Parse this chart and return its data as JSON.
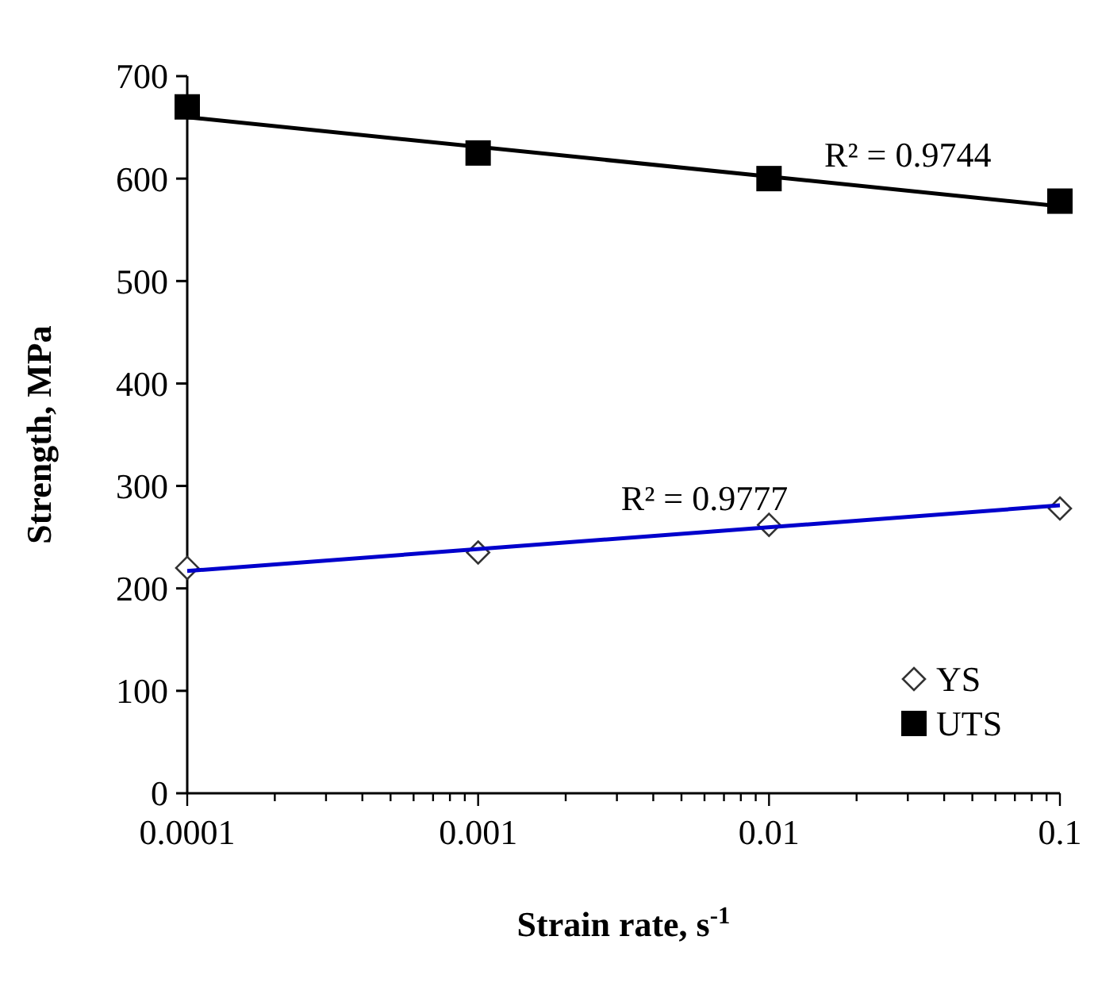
{
  "chart_data": {
    "type": "scatter",
    "xlabel": "Strain rate, s$^{-1}$",
    "ylabel": "Strength, MPa",
    "log": "x",
    "xlim": [
      0.0001,
      0.1
    ],
    "ylim": [
      0,
      700
    ],
    "xticks": [
      0.0001,
      {
        "value": 0.0002,
        "label": null
      },
      {
        "value": 0.0003,
        "label": null
      },
      {
        "value": 0.0004,
        "label": null
      },
      {
        "value": 0.0005,
        "label": null
      },
      {
        "value": 0.0006,
        "label": null
      },
      {
        "value": 0.0007,
        "label": null
      },
      {
        "value": 0.0008,
        "label": null
      },
      {
        "value": 0.0009,
        "label": null
      },
      0.001,
      {
        "value": 0.002,
        "label": null
      },
      {
        "value": 0.003,
        "label": null
      },
      {
        "value": 0.004,
        "label": null
      },
      {
        "value": 0.005,
        "label": null
      },
      {
        "value": 0.006,
        "label": null
      },
      {
        "value": 0.007,
        "label": null
      },
      {
        "value": 0.008,
        "label": null
      },
      {
        "value": 0.009,
        "label": null
      },
      0.01,
      {
        "value": 0.02,
        "label": null
      },
      {
        "value": 0.03,
        "label": null
      },
      {
        "value": 0.04,
        "label": null
      },
      {
        "value": 0.05,
        "label": null
      },
      {
        "value": 0.06,
        "label": null
      },
      {
        "value": 0.07,
        "label": null
      },
      {
        "value": 0.08,
        "label": null
      },
      {
        "value": 0.09,
        "label": null
      },
      0.1
    ],
    "yticks": [
      0,
      100,
      200,
      300,
      400,
      500,
      600,
      700
    ],
    "grid": false,
    "legend": "bottom right",
    "series": [
      {
        "type": "line",
        "color": "#000000",
        "x": [
          0.0001,
          0.1
        ],
        "values": [
          660,
          573
        ],
        "marker": "none",
        "line_style": "solid"
      },
      {
        "type": "line",
        "color": "#0000cc",
        "x": [
          0.0001,
          0.1
        ],
        "values": [
          217,
          281
        ],
        "marker": "none",
        "line_style": "solid"
      },
      {
        "name": "YS",
        "color": "#333333",
        "x": [
          0.0001,
          0.001,
          0.01,
          0.1
        ],
        "values": [
          220,
          235,
          262,
          278
        ],
        "marker": "diamond"
      },
      {
        "name": "UTS",
        "color": "#000000",
        "x": [
          0.0001,
          0.001,
          0.01,
          0.1
        ],
        "values": [
          670,
          625,
          600,
          578
        ],
        "marker": "square"
      }
    ],
    "annotations": [
      {
        "text": "R² = 0.9744",
        "x": 0.03,
        "y": 590
      },
      {
        "text": "R² = 0.9777",
        "x": 0.006,
        "y": 255
      }
    ]
  }
}
